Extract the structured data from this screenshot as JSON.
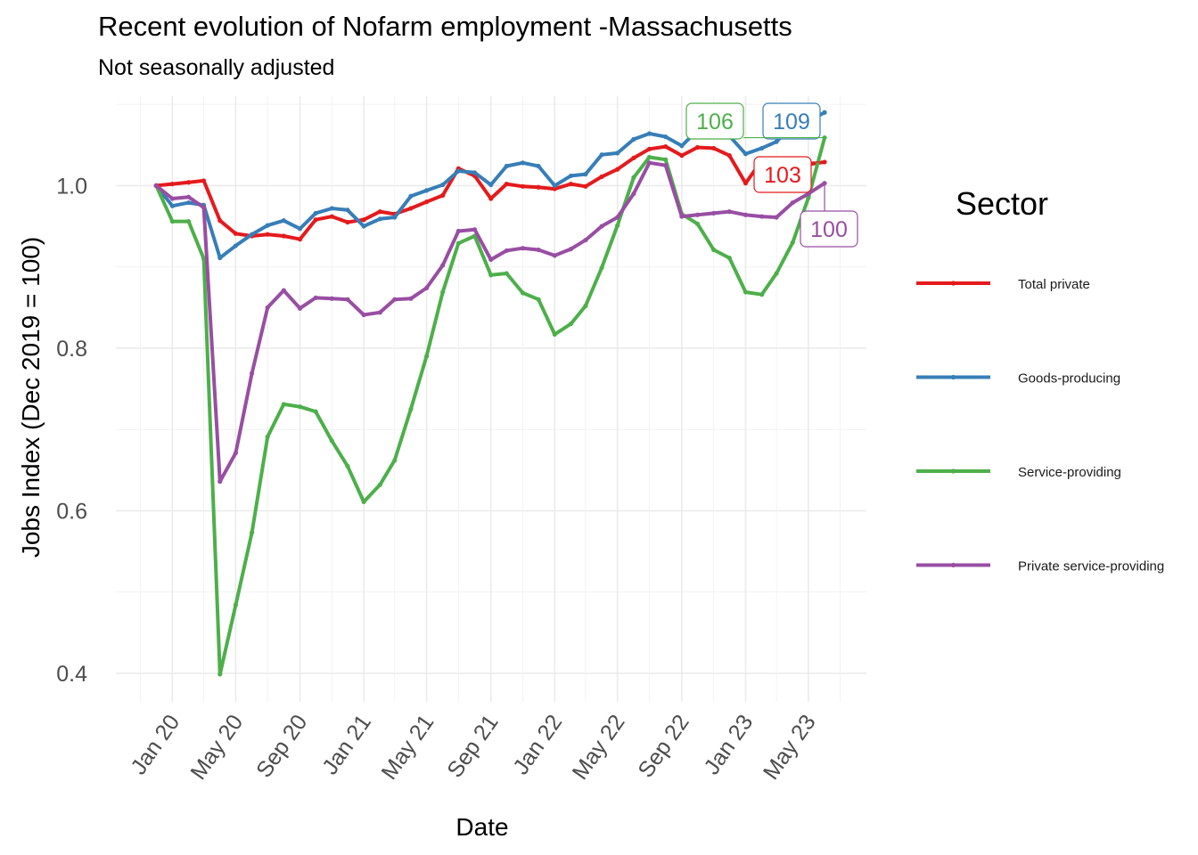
{
  "chart_data": {
    "type": "line",
    "title": "Recent evolution of Nofarm employment -Massachusetts",
    "subtitle": "Not seasonally adjusted",
    "xlabel": "Date",
    "ylabel": "Jobs Index (Dec 2019 = 100)",
    "x_start": "2019-12",
    "x_end": "2023-06",
    "xlim": [
      "2019-09-15",
      "2023-08-20"
    ],
    "ylim": [
      0.365,
      1.11
    ],
    "x_ticks": [
      "Jan 20",
      "May 20",
      "Sep 20",
      "Jan 21",
      "May 21",
      "Sep 21",
      "Jan 22",
      "May 22",
      "Sep 22",
      "Jan 23",
      "May 23"
    ],
    "y_ticks": [
      "0.4",
      "0.6",
      "0.8",
      "1.0"
    ],
    "y_tick_values": [
      0.4,
      0.6,
      0.8,
      1.0
    ],
    "grid": true,
    "legend": {
      "title": "Sector",
      "position": "right"
    },
    "series": [
      {
        "name": "Total private",
        "color": "#e41a1c",
        "values": [
          1.0,
          1.002,
          1.004,
          1.006,
          0.957,
          0.941,
          0.938,
          0.94,
          0.938,
          0.934,
          0.958,
          0.962,
          0.955,
          0.958,
          0.968,
          0.965,
          0.972,
          0.98,
          0.988,
          1.021,
          1.012,
          0.984,
          1.002,
          0.999,
          0.998,
          0.996,
          1.002,
          0.999,
          1.011,
          1.02,
          1.034,
          1.045,
          1.048,
          1.037,
          1.047,
          1.046,
          1.037,
          1.003,
          1.031,
          1.024,
          1.022,
          1.026,
          1.029
        ],
        "end_label": "103"
      },
      {
        "name": "Goods-producing",
        "color": "#377eb8",
        "values": [
          1.0,
          0.975,
          0.979,
          0.976,
          0.911,
          0.926,
          0.94,
          0.951,
          0.957,
          0.947,
          0.966,
          0.972,
          0.97,
          0.95,
          0.959,
          0.961,
          0.987,
          0.994,
          1.001,
          1.018,
          1.016,
          1.001,
          1.024,
          1.028,
          1.024,
          1.0,
          1.012,
          1.014,
          1.038,
          1.04,
          1.057,
          1.064,
          1.06,
          1.049,
          1.068,
          1.069,
          1.061,
          1.039,
          1.046,
          1.054,
          1.074,
          1.079,
          1.09
        ],
        "end_label": "109"
      },
      {
        "name": "Service-providing",
        "color": "#4daf4a",
        "values": [
          1.0,
          0.956,
          0.956,
          0.91,
          0.399,
          0.484,
          0.573,
          0.691,
          0.731,
          0.728,
          0.722,
          0.686,
          0.655,
          0.611,
          0.632,
          0.662,
          0.725,
          0.79,
          0.869,
          0.929,
          0.938,
          0.89,
          0.892,
          0.868,
          0.86,
          0.817,
          0.83,
          0.852,
          0.899,
          0.951,
          1.01,
          1.035,
          1.032,
          0.965,
          0.953,
          0.921,
          0.911,
          0.869,
          0.866,
          0.892,
          0.93,
          0.985,
          1.059
        ],
        "end_label": "106"
      },
      {
        "name": "Private service-providing",
        "color": "#984ea3",
        "values": [
          1.0,
          0.984,
          0.986,
          0.973,
          0.636,
          0.671,
          0.769,
          0.85,
          0.871,
          0.849,
          0.862,
          0.861,
          0.86,
          0.841,
          0.844,
          0.86,
          0.861,
          0.874,
          0.902,
          0.944,
          0.946,
          0.909,
          0.92,
          0.923,
          0.921,
          0.914,
          0.922,
          0.933,
          0.95,
          0.961,
          0.99,
          1.028,
          1.025,
          0.962,
          0.964,
          0.966,
          0.968,
          0.964,
          0.962,
          0.961,
          0.979,
          0.99,
          1.003
        ],
        "end_label": "100"
      }
    ]
  }
}
